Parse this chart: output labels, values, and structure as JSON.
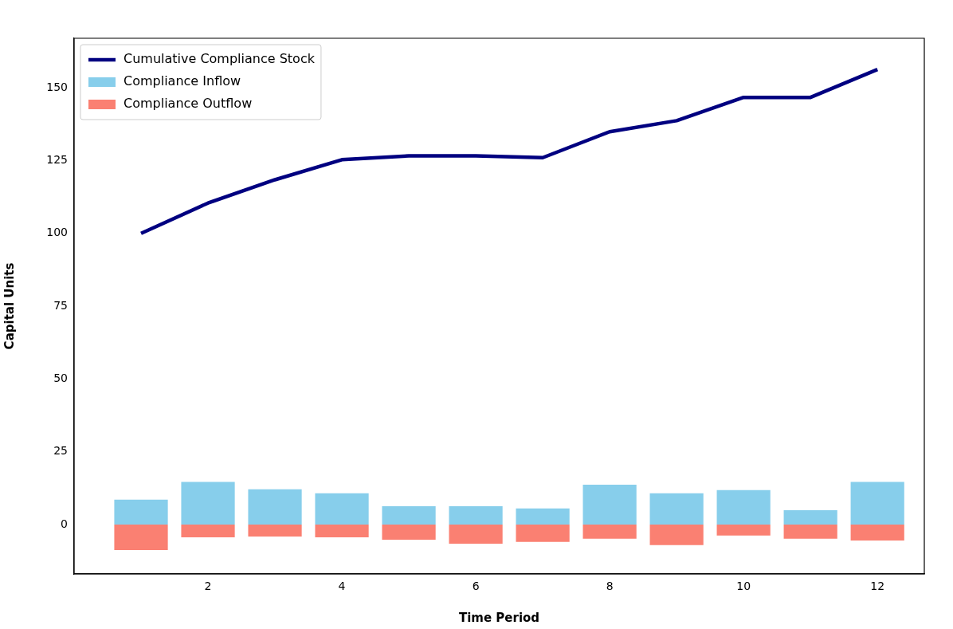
{
  "chart_data": {
    "type": "bar",
    "xlabel": "Time Period",
    "ylabel": "Capital Units",
    "stacked": true,
    "grid": false,
    "legend": "top left",
    "x": [
      1,
      2,
      3,
      4,
      5,
      6,
      7,
      8,
      9,
      10,
      11,
      12
    ],
    "series": [
      {
        "name": "Cumulative Compliance Stock",
        "type": "line",
        "color": "#000080",
        "values": [
          100,
          110.4,
          118.4,
          125.3,
          126.6,
          126.6,
          126,
          134.9,
          138.7,
          146.7,
          146.7,
          156.3
        ]
      },
      {
        "name": "Compliance Inflow",
        "color": "#87ceeb",
        "values": [
          8.5,
          14.6,
          12.1,
          10.7,
          6.3,
          6.3,
          5.5,
          13.7,
          10.7,
          11.8,
          4.9,
          14.6
        ]
      },
      {
        "name": "Compliance Outflow",
        "color": "#fa8072",
        "values": [
          -8.8,
          -4.4,
          -4.1,
          -4.4,
          -5.2,
          -6.6,
          -6,
          -4.9,
          -7.1,
          -3.8,
          -4.9,
          -5.5
        ]
      }
    ],
    "xlim": [
      0,
      12.7
    ],
    "xticks": [
      2,
      4,
      6,
      8,
      10,
      12
    ],
    "ylim": [
      -17,
      167
    ],
    "yticks": [
      0,
      25,
      50,
      75,
      100,
      125,
      150
    ]
  }
}
